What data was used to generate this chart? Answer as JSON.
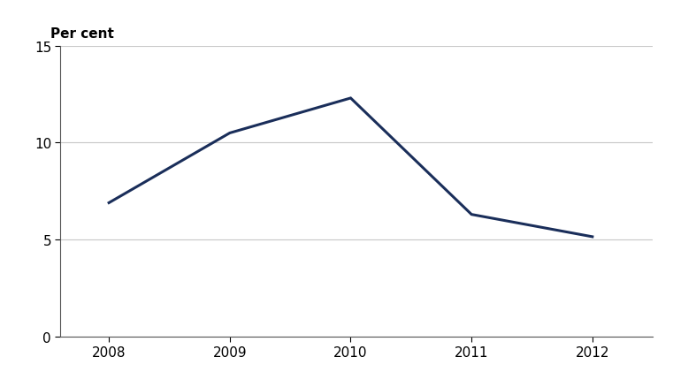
{
  "years": [
    2008,
    2009,
    2010,
    2011,
    2012
  ],
  "values": [
    6.9,
    10.5,
    12.3,
    6.3,
    5.15
  ],
  "line_color": "#1a2e5a",
  "line_width": 2.2,
  "ylabel": "Per cent",
  "ylim": [
    0,
    15
  ],
  "yticks": [
    0,
    5,
    10,
    15
  ],
  "xlim": [
    2007.6,
    2012.5
  ],
  "xticks": [
    2008,
    2009,
    2010,
    2011,
    2012
  ],
  "grid_color": "#c8c8c8",
  "background_color": "#ffffff",
  "ylabel_fontsize": 11,
  "tick_fontsize": 11
}
